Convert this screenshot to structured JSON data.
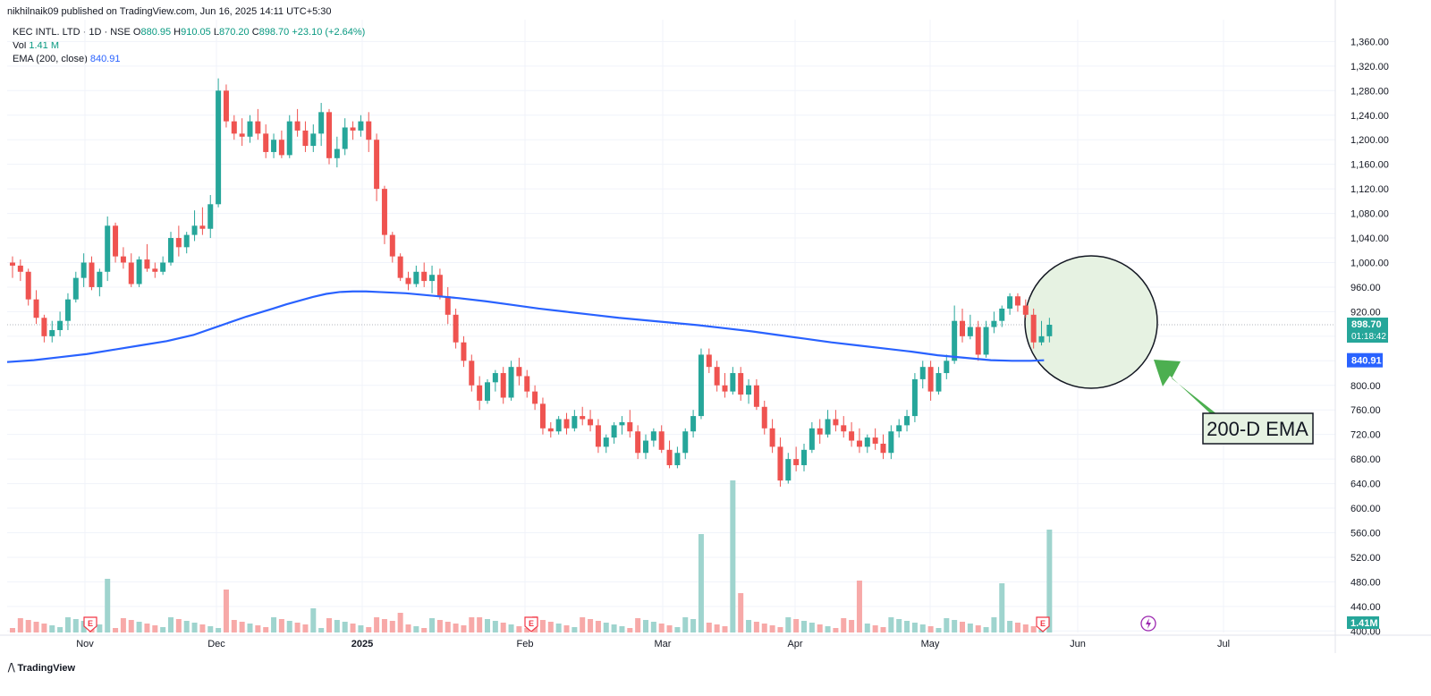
{
  "header": {
    "published": "nikhilnaik09 published on TradingView.com, Jun 16, 2025 14:11 UTC+5:30"
  },
  "legend": {
    "symbol": "KEC INTL. LTD · 1D · NSE",
    "open_label": "O",
    "open": "880.95",
    "high_label": "H",
    "high": "910.05",
    "low_label": "L",
    "low": "870.20",
    "close_label": "C",
    "close": "898.70",
    "change": "+23.10 (+2.64%)",
    "vol_label": "Vol",
    "vol": "1.41 M",
    "ema_label": "EMA (200, close)",
    "ema": "840.91"
  },
  "price_tag": {
    "price": "898.70",
    "countdown": "01:18:42"
  },
  "ema_tag": "840.91",
  "volume_tag": "1.41M",
  "annotation": {
    "text": "200-D EMA"
  },
  "footer": {
    "brand": "TradingView"
  },
  "colors": {
    "up": "#26a69a",
    "down": "#ef5350",
    "ema": "#2962ff",
    "vol_up": "#9fd4ce",
    "vol_down": "#f7a9a8",
    "highlight": "#e6f2e2",
    "arrow": "#4caf50"
  },
  "chart_data": {
    "type": "candlestick",
    "symbol": "KEC INTL. LTD",
    "interval": "1D",
    "exchange": "NSE",
    "price_axis": {
      "ylim": [
        400,
        1380
      ],
      "ticks": [
        400,
        440,
        480,
        520,
        560,
        600,
        640,
        680,
        720,
        760,
        800,
        840,
        880,
        920,
        960,
        1000,
        1040,
        1080,
        1120,
        1160,
        1200,
        1240,
        1280,
        1320,
        1360
      ]
    },
    "x_axis_labels": [
      "Nov",
      "Dec",
      "2025",
      "Feb",
      "Mar",
      "Apr",
      "May",
      "Jun",
      "Jul"
    ],
    "grid": true,
    "candles": [
      [
        1000,
        1010,
        975,
        995
      ],
      [
        995,
        1005,
        970,
        985
      ],
      [
        985,
        990,
        930,
        940
      ],
      [
        940,
        955,
        900,
        910
      ],
      [
        910,
        915,
        870,
        880
      ],
      [
        880,
        905,
        870,
        890
      ],
      [
        890,
        920,
        880,
        905
      ],
      [
        905,
        950,
        890,
        940
      ],
      [
        940,
        985,
        935,
        975
      ],
      [
        975,
        1015,
        960,
        1000
      ],
      [
        1000,
        1010,
        955,
        960
      ],
      [
        960,
        990,
        945,
        985
      ],
      [
        985,
        1075,
        970,
        1060
      ],
      [
        1060,
        1065,
        1000,
        1010
      ],
      [
        1010,
        1025,
        990,
        1000
      ],
      [
        1000,
        1015,
        960,
        965
      ],
      [
        965,
        1010,
        960,
        1005
      ],
      [
        1005,
        1030,
        985,
        990
      ],
      [
        990,
        1000,
        975,
        985
      ],
      [
        985,
        1010,
        980,
        1000
      ],
      [
        1000,
        1050,
        995,
        1040
      ],
      [
        1040,
        1060,
        1010,
        1025
      ],
      [
        1025,
        1050,
        1015,
        1045
      ],
      [
        1045,
        1085,
        1035,
        1060
      ],
      [
        1060,
        1090,
        1045,
        1055
      ],
      [
        1055,
        1110,
        1040,
        1095
      ],
      [
        1095,
        1300,
        1090,
        1280
      ],
      [
        1280,
        1290,
        1220,
        1230
      ],
      [
        1230,
        1240,
        1200,
        1210
      ],
      [
        1210,
        1235,
        1190,
        1205
      ],
      [
        1205,
        1240,
        1195,
        1230
      ],
      [
        1230,
        1250,
        1200,
        1210
      ],
      [
        1210,
        1225,
        1170,
        1180
      ],
      [
        1180,
        1210,
        1170,
        1200
      ],
      [
        1200,
        1215,
        1170,
        1175
      ],
      [
        1175,
        1240,
        1170,
        1230
      ],
      [
        1230,
        1250,
        1205,
        1215
      ],
      [
        1215,
        1230,
        1180,
        1190
      ],
      [
        1190,
        1225,
        1180,
        1210
      ],
      [
        1210,
        1260,
        1190,
        1245
      ],
      [
        1245,
        1250,
        1160,
        1170
      ],
      [
        1170,
        1205,
        1155,
        1185
      ],
      [
        1185,
        1235,
        1175,
        1220
      ],
      [
        1220,
        1230,
        1200,
        1215
      ],
      [
        1215,
        1240,
        1205,
        1230
      ],
      [
        1230,
        1245,
        1180,
        1200
      ],
      [
        1200,
        1210,
        1100,
        1120
      ],
      [
        1120,
        1125,
        1030,
        1045
      ],
      [
        1045,
        1050,
        1000,
        1010
      ],
      [
        1010,
        1015,
        970,
        975
      ],
      [
        975,
        985,
        955,
        965
      ],
      [
        965,
        995,
        960,
        985
      ],
      [
        985,
        1000,
        960,
        970
      ],
      [
        970,
        995,
        950,
        980
      ],
      [
        980,
        990,
        940,
        945
      ],
      [
        945,
        960,
        900,
        915
      ],
      [
        915,
        925,
        860,
        870
      ],
      [
        870,
        880,
        830,
        840
      ],
      [
        840,
        850,
        790,
        800
      ],
      [
        800,
        815,
        760,
        775
      ],
      [
        775,
        810,
        770,
        805
      ],
      [
        805,
        825,
        790,
        820
      ],
      [
        820,
        830,
        770,
        780
      ],
      [
        780,
        840,
        775,
        830
      ],
      [
        830,
        845,
        800,
        815
      ],
      [
        815,
        825,
        780,
        790
      ],
      [
        790,
        800,
        760,
        770
      ],
      [
        770,
        780,
        720,
        730
      ],
      [
        730,
        740,
        715,
        725
      ],
      [
        725,
        750,
        720,
        745
      ],
      [
        745,
        755,
        720,
        730
      ],
      [
        730,
        760,
        725,
        750
      ],
      [
        750,
        765,
        735,
        745
      ],
      [
        745,
        760,
        725,
        735
      ],
      [
        735,
        745,
        690,
        700
      ],
      [
        700,
        720,
        690,
        715
      ],
      [
        715,
        740,
        705,
        735
      ],
      [
        735,
        750,
        720,
        740
      ],
      [
        740,
        760,
        715,
        725
      ],
      [
        725,
        735,
        680,
        690
      ],
      [
        690,
        720,
        680,
        710
      ],
      [
        710,
        730,
        700,
        725
      ],
      [
        725,
        735,
        690,
        695
      ],
      [
        695,
        710,
        665,
        670
      ],
      [
        670,
        700,
        665,
        690
      ],
      [
        690,
        730,
        680,
        725
      ],
      [
        725,
        760,
        715,
        750
      ],
      [
        750,
        860,
        745,
        850
      ],
      [
        850,
        860,
        820,
        830
      ],
      [
        830,
        840,
        790,
        800
      ],
      [
        800,
        820,
        780,
        790
      ],
      [
        790,
        830,
        785,
        820
      ],
      [
        820,
        830,
        775,
        785
      ],
      [
        785,
        810,
        770,
        800
      ],
      [
        800,
        810,
        760,
        765
      ],
      [
        765,
        775,
        720,
        730
      ],
      [
        730,
        745,
        690,
        700
      ],
      [
        700,
        715,
        635,
        645
      ],
      [
        645,
        690,
        640,
        680
      ],
      [
        680,
        700,
        660,
        670
      ],
      [
        670,
        705,
        660,
        695
      ],
      [
        695,
        740,
        690,
        730
      ],
      [
        730,
        745,
        705,
        720
      ],
      [
        720,
        760,
        715,
        745
      ],
      [
        745,
        760,
        725,
        735
      ],
      [
        735,
        750,
        715,
        725
      ],
      [
        725,
        740,
        700,
        710
      ],
      [
        710,
        730,
        690,
        700
      ],
      [
        700,
        720,
        690,
        715
      ],
      [
        715,
        730,
        695,
        705
      ],
      [
        705,
        720,
        680,
        690
      ],
      [
        690,
        735,
        680,
        725
      ],
      [
        725,
        745,
        715,
        735
      ],
      [
        735,
        760,
        725,
        750
      ],
      [
        750,
        820,
        740,
        810
      ],
      [
        810,
        840,
        795,
        830
      ],
      [
        830,
        840,
        775,
        790
      ],
      [
        790,
        830,
        785,
        820
      ],
      [
        820,
        850,
        810,
        840
      ],
      [
        840,
        930,
        835,
        905
      ],
      [
        905,
        925,
        870,
        880
      ],
      [
        880,
        915,
        875,
        895
      ],
      [
        895,
        905,
        840,
        850
      ],
      [
        850,
        905,
        845,
        895
      ],
      [
        895,
        920,
        885,
        905
      ],
      [
        905,
        930,
        895,
        925
      ],
      [
        925,
        950,
        915,
        945
      ],
      [
        945,
        950,
        920,
        930
      ],
      [
        930,
        940,
        910,
        915
      ],
      [
        915,
        925,
        860,
        870
      ],
      [
        870,
        905,
        865,
        880
      ],
      [
        880,
        910,
        870,
        898.7
      ]
    ],
    "volume_tag": "1.41M",
    "ema": {
      "name": "EMA (200, close)",
      "last": 840.91,
      "values": [
        [
          0,
          838
        ],
        [
          10,
          841
        ],
        [
          20,
          846
        ],
        [
          30,
          851
        ],
        [
          40,
          858
        ],
        [
          50,
          865
        ],
        [
          60,
          872
        ],
        [
          70,
          882
        ],
        [
          80,
          897
        ],
        [
          90,
          912
        ],
        [
          100,
          925
        ],
        [
          105,
          932
        ],
        [
          110,
          938
        ],
        [
          115,
          944
        ],
        [
          120,
          949
        ],
        [
          125,
          952
        ],
        [
          130,
          953
        ],
        [
          135,
          953
        ],
        [
          140,
          952
        ],
        [
          150,
          950
        ],
        [
          160,
          946
        ],
        [
          170,
          942
        ],
        [
          180,
          937
        ],
        [
          190,
          931
        ],
        [
          200,
          925
        ],
        [
          210,
          920
        ],
        [
          220,
          915
        ],
        [
          230,
          910
        ],
        [
          240,
          906
        ],
        [
          250,
          902
        ],
        [
          260,
          898
        ],
        [
          270,
          893
        ],
        [
          280,
          888
        ],
        [
          290,
          882
        ],
        [
          300,
          876
        ],
        [
          310,
          870
        ],
        [
          320,
          865
        ],
        [
          330,
          860
        ],
        [
          340,
          855
        ],
        [
          350,
          849
        ],
        [
          360,
          845
        ],
        [
          370,
          841
        ],
        [
          378,
          840
        ],
        [
          385,
          840
        ],
        [
          390,
          840.91
        ]
      ]
    }
  }
}
